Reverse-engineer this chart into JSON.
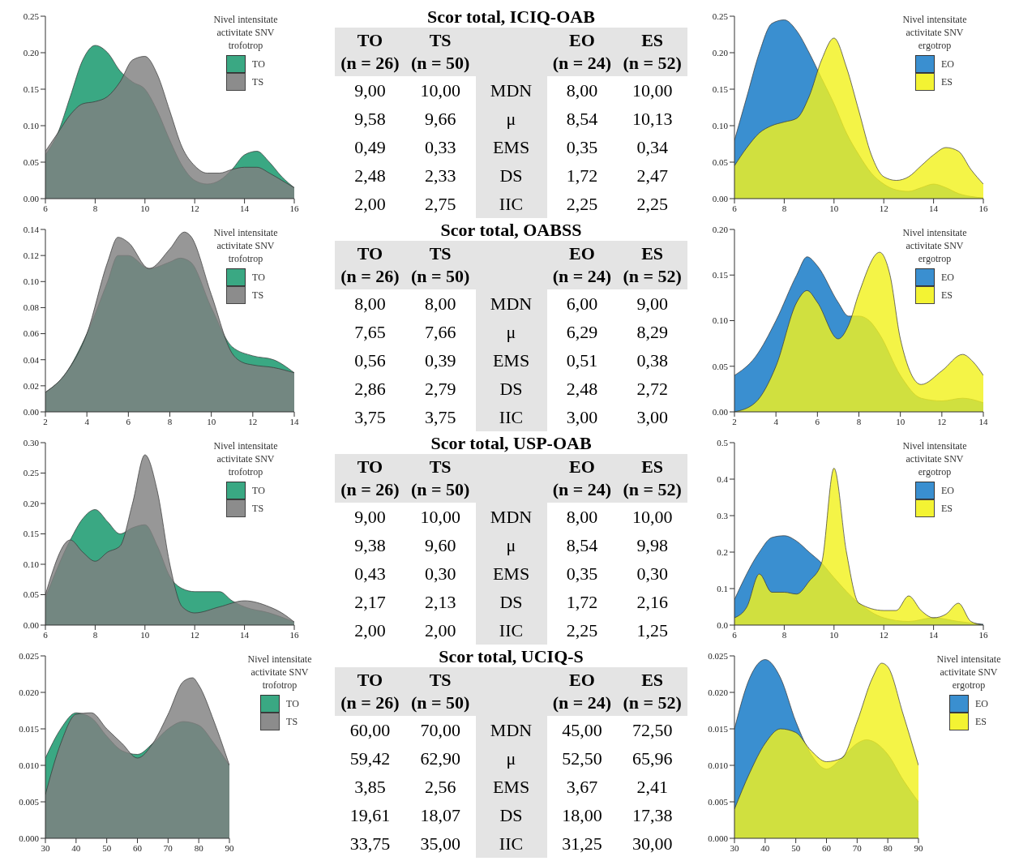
{
  "chart_data": [
    {
      "type": "area",
      "legend_title": "Nivel intensitate activitate SNV trofotrop",
      "legend": "top right",
      "xlim": [
        6,
        16
      ],
      "xticks": [
        6,
        8,
        10,
        12,
        14,
        16
      ],
      "ylim": [
        0,
        0.25
      ],
      "yticks": [
        {
          "value": 0,
          "label": "0.00"
        },
        {
          "value": 0.05,
          "label": "0.05"
        },
        {
          "value": 0.1,
          "label": "0.10"
        },
        {
          "value": 0.15,
          "label": "0.15"
        },
        {
          "value": 0.2,
          "label": "0.20"
        },
        {
          "value": 0.25,
          "label": "0.25"
        }
      ],
      "series": [
        {
          "name": "TO",
          "color": "#3aa883",
          "x": [
            6,
            6.5,
            7,
            7.5,
            8,
            8.5,
            9,
            9.5,
            10,
            10.5,
            11,
            11.5,
            12,
            12.5,
            13,
            13.5,
            14,
            14.5,
            15,
            15.5,
            16
          ],
          "values": [
            0.06,
            0.09,
            0.14,
            0.19,
            0.21,
            0.2,
            0.175,
            0.16,
            0.15,
            0.12,
            0.08,
            0.045,
            0.025,
            0.02,
            0.025,
            0.04,
            0.06,
            0.065,
            0.05,
            0.03,
            0.015
          ]
        },
        {
          "name": "TS",
          "color": "#808080",
          "x": [
            6,
            6.5,
            7,
            7.5,
            8,
            8.5,
            9,
            9.5,
            10,
            10.5,
            11,
            11.5,
            12,
            12.5,
            13,
            13.5,
            14,
            14.5,
            15,
            15.5,
            16
          ],
          "values": [
            0.065,
            0.09,
            0.115,
            0.13,
            0.133,
            0.14,
            0.16,
            0.19,
            0.195,
            0.17,
            0.12,
            0.07,
            0.045,
            0.035,
            0.035,
            0.04,
            0.043,
            0.043,
            0.035,
            0.025,
            0.015
          ]
        }
      ]
    },
    {
      "type": "other",
      "title": "Scor total, ICIQ-OAB",
      "categories": [
        "TO\n(n = 26)",
        "TS\n(n = 50)",
        "EO\n(n = 24)",
        "ES\n(n = 52)"
      ],
      "y_categories": [
        "MDN",
        "μ",
        "EMS",
        "DS",
        "IIC"
      ],
      "cell_labels": [
        [
          "9,00",
          "10,00",
          "8,00",
          "10,00"
        ],
        [
          "9,58",
          "9,66",
          "8,54",
          "10,13"
        ],
        [
          "0,49",
          "0,33",
          "0,35",
          "0,34"
        ],
        [
          "2,48",
          "2,33",
          "1,72",
          "2,47"
        ],
        [
          "2,00",
          "2,75",
          "2,25",
          "2,25"
        ]
      ]
    },
    {
      "type": "area",
      "legend_title": "Nivel intensitate activitate SNV ergotrop",
      "legend": "top right",
      "xlim": [
        6,
        16
      ],
      "xticks": [
        6,
        8,
        10,
        12,
        14,
        16
      ],
      "ylim": [
        0,
        0.25
      ],
      "yticks": [
        {
          "value": 0,
          "label": "0.00"
        },
        {
          "value": 0.05,
          "label": "0.05"
        },
        {
          "value": 0.1,
          "label": "0.10"
        },
        {
          "value": 0.15,
          "label": "0.15"
        },
        {
          "value": 0.2,
          "label": "0.20"
        },
        {
          "value": 0.25,
          "label": "0.25"
        }
      ],
      "series": [
        {
          "name": "EO",
          "color": "#3a8fd0",
          "x": [
            6,
            6.5,
            7,
            7.5,
            8,
            8.5,
            9,
            9.5,
            10,
            10.5,
            11,
            11.5,
            12,
            12.5,
            13,
            13.5,
            14,
            14.5,
            15,
            15.5,
            16
          ],
          "values": [
            0.08,
            0.14,
            0.2,
            0.24,
            0.245,
            0.23,
            0.2,
            0.165,
            0.13,
            0.09,
            0.06,
            0.035,
            0.02,
            0.012,
            0.01,
            0.015,
            0.02,
            0.015,
            0.007,
            0.003,
            0.001
          ]
        },
        {
          "name": "ES",
          "color": "#f2f21e",
          "x": [
            6,
            6.5,
            7,
            7.5,
            8,
            8.5,
            9,
            9.5,
            10,
            10.5,
            11,
            11.5,
            12,
            12.5,
            13,
            13.5,
            14,
            14.5,
            15,
            15.5,
            16
          ],
          "values": [
            0.045,
            0.07,
            0.09,
            0.1,
            0.105,
            0.11,
            0.14,
            0.19,
            0.22,
            0.18,
            0.12,
            0.06,
            0.03,
            0.025,
            0.03,
            0.045,
            0.06,
            0.07,
            0.065,
            0.04,
            0.02
          ]
        }
      ]
    },
    {
      "type": "area",
      "legend_title": "Nivel intensitate activitate SNV trofotrop",
      "legend": "top right",
      "xlim": [
        2,
        14
      ],
      "xticks": [
        2,
        4,
        6,
        8,
        10,
        12,
        14
      ],
      "ylim": [
        0,
        0.14
      ],
      "yticks": [
        {
          "value": 0,
          "label": "0.00"
        },
        {
          "value": 0.02,
          "label": "0.02"
        },
        {
          "value": 0.04,
          "label": "0.04"
        },
        {
          "value": 0.06,
          "label": "0.06"
        },
        {
          "value": 0.08,
          "label": "0.08"
        },
        {
          "value": 0.1,
          "label": "0.10"
        },
        {
          "value": 0.12,
          "label": "0.12"
        },
        {
          "value": 0.14,
          "label": "0.14"
        }
      ],
      "series": [
        {
          "name": "TO",
          "color": "#3aa883",
          "x": [
            2,
            3,
            4,
            5,
            5.5,
            6,
            7,
            8,
            8.5,
            9,
            10,
            11,
            12,
            13,
            14
          ],
          "values": [
            0.015,
            0.03,
            0.06,
            0.1,
            0.12,
            0.12,
            0.11,
            0.115,
            0.118,
            0.115,
            0.08,
            0.05,
            0.043,
            0.04,
            0.03
          ]
        },
        {
          "name": "TS",
          "color": "#808080",
          "x": [
            2,
            3,
            4,
            5,
            5.5,
            6,
            7,
            8,
            8.7,
            9,
            10,
            11,
            11.5,
            12,
            13,
            14
          ],
          "values": [
            0.015,
            0.03,
            0.06,
            0.115,
            0.134,
            0.13,
            0.11,
            0.125,
            0.138,
            0.135,
            0.09,
            0.045,
            0.038,
            0.036,
            0.034,
            0.03
          ]
        }
      ]
    },
    {
      "type": "other",
      "title": "Scor total, OABSS",
      "categories": [
        "TO\n(n = 26)",
        "TS\n(n = 50)",
        "EO\n(n = 24)",
        "ES\n(n = 52)"
      ],
      "y_categories": [
        "MDN",
        "μ",
        "EMS",
        "DS",
        "IIC"
      ],
      "cell_labels": [
        [
          "8,00",
          "8,00",
          "6,00",
          "9,00"
        ],
        [
          "7,65",
          "7,66",
          "6,29",
          "8,29"
        ],
        [
          "0,56",
          "0,39",
          "0,51",
          "0,38"
        ],
        [
          "2,86",
          "2,79",
          "2,48",
          "2,72"
        ],
        [
          "3,75",
          "3,75",
          "3,00",
          "3,00"
        ]
      ]
    },
    {
      "type": "area",
      "legend_title": "Nivel intensitate activitate SNV ergotrop",
      "legend": "top right",
      "xlim": [
        2,
        14
      ],
      "xticks": [
        2,
        4,
        6,
        8,
        10,
        12,
        14
      ],
      "ylim": [
        0,
        0.2
      ],
      "yticks": [
        {
          "value": 0,
          "label": "0.00"
        },
        {
          "value": 0.05,
          "label": "0.05"
        },
        {
          "value": 0.1,
          "label": "0.10"
        },
        {
          "value": 0.15,
          "label": "0.15"
        },
        {
          "value": 0.2,
          "label": "0.20"
        }
      ],
      "series": [
        {
          "name": "EO",
          "color": "#3a8fd0",
          "x": [
            2,
            3,
            4,
            5,
            5.5,
            6,
            7,
            7.5,
            8,
            8.5,
            9,
            10,
            11,
            12,
            13,
            14
          ],
          "values": [
            0.04,
            0.06,
            0.1,
            0.15,
            0.17,
            0.16,
            0.12,
            0.105,
            0.105,
            0.1,
            0.085,
            0.04,
            0.015,
            0.012,
            0.015,
            0.01
          ]
        },
        {
          "name": "ES",
          "color": "#f2f21e",
          "x": [
            2,
            3,
            4,
            5,
            5.5,
            6,
            7,
            7.5,
            8,
            9,
            9.5,
            10,
            11,
            12,
            13,
            13.5,
            14
          ],
          "values": [
            0,
            0.01,
            0.05,
            0.12,
            0.133,
            0.12,
            0.08,
            0.095,
            0.13,
            0.175,
            0.15,
            0.08,
            0.03,
            0.045,
            0.063,
            0.055,
            0.04
          ]
        }
      ]
    },
    {
      "type": "area",
      "legend_title": "Nivel intensitate activitate SNV trofotrop",
      "legend": "top right",
      "xlim": [
        6,
        16
      ],
      "xticks": [
        6,
        8,
        10,
        12,
        14,
        16
      ],
      "ylim": [
        0,
        0.3
      ],
      "yticks": [
        {
          "value": 0,
          "label": "0.00"
        },
        {
          "value": 0.05,
          "label": "0.05"
        },
        {
          "value": 0.1,
          "label": "0.10"
        },
        {
          "value": 0.15,
          "label": "0.15"
        },
        {
          "value": 0.2,
          "label": "0.20"
        },
        {
          "value": 0.25,
          "label": "0.25"
        },
        {
          "value": 0.3,
          "label": "0.30"
        }
      ],
      "series": [
        {
          "name": "TO",
          "color": "#3aa883",
          "x": [
            6,
            7,
            7.5,
            8,
            8.5,
            9,
            9.5,
            10,
            10.5,
            11,
            11.5,
            12,
            13,
            13.5,
            14,
            15,
            16
          ],
          "values": [
            0.045,
            0.14,
            0.175,
            0.19,
            0.17,
            0.15,
            0.16,
            0.165,
            0.13,
            0.08,
            0.06,
            0.055,
            0.055,
            0.04,
            0.03,
            0.02,
            0.005
          ]
        },
        {
          "name": "TS",
          "color": "#808080",
          "x": [
            6,
            7,
            7.5,
            8,
            8.5,
            9,
            9.5,
            10,
            10.5,
            11,
            11.5,
            12,
            13,
            14,
            15,
            15.5,
            16
          ],
          "values": [
            0.05,
            0.14,
            0.12,
            0.105,
            0.12,
            0.13,
            0.2,
            0.28,
            0.22,
            0.1,
            0.03,
            0.02,
            0.03,
            0.04,
            0.03,
            0.02,
            0.005
          ]
        }
      ]
    },
    {
      "type": "other",
      "title": "Scor total, USP-OAB",
      "categories": [
        "TO\n(n = 26)",
        "TS\n(n = 50)",
        "EO\n(n = 24)",
        "ES\n(n = 52)"
      ],
      "y_categories": [
        "MDN",
        "μ",
        "EMS",
        "DS",
        "IIC"
      ],
      "cell_labels": [
        [
          "9,00",
          "10,00",
          "8,00",
          "10,00"
        ],
        [
          "9,38",
          "9,60",
          "8,54",
          "9,98"
        ],
        [
          "0,43",
          "0,30",
          "0,35",
          "0,30"
        ],
        [
          "2,17",
          "2,13",
          "1,72",
          "2,16"
        ],
        [
          "2,00",
          "2,00",
          "2,25",
          "1,25"
        ]
      ]
    },
    {
      "type": "area",
      "legend_title": "Nivel intensitate activitate SNV ergotrop",
      "legend": "top right",
      "xlim": [
        6,
        16
      ],
      "xticks": [
        6,
        8,
        10,
        12,
        14,
        16
      ],
      "ylim": [
        0,
        0.5
      ],
      "yticks": [
        {
          "value": 0,
          "label": "0.0"
        },
        {
          "value": 0.1,
          "label": "0.1"
        },
        {
          "value": 0.2,
          "label": "0.2"
        },
        {
          "value": 0.3,
          "label": "0.3"
        },
        {
          "value": 0.4,
          "label": "0.4"
        },
        {
          "value": 0.5,
          "label": "0.5"
        }
      ],
      "series": [
        {
          "name": "EO",
          "color": "#3a8fd0",
          "x": [
            6,
            7,
            7.5,
            8,
            8.5,
            9,
            9.5,
            10,
            11,
            12,
            13,
            14,
            15,
            16
          ],
          "values": [
            0.07,
            0.2,
            0.24,
            0.245,
            0.23,
            0.2,
            0.17,
            0.13,
            0.06,
            0.02,
            0.01,
            0.02,
            0.01,
            0.002
          ]
        },
        {
          "name": "ES",
          "color": "#f2f21e",
          "x": [
            6,
            6.5,
            7,
            7.5,
            8,
            8.5,
            9,
            9.5,
            10,
            10.5,
            11,
            12,
            12.5,
            13,
            13.5,
            14,
            14.5,
            15,
            15.5,
            16
          ],
          "values": [
            0.02,
            0.05,
            0.14,
            0.09,
            0.09,
            0.085,
            0.12,
            0.17,
            0.43,
            0.2,
            0.06,
            0.04,
            0.04,
            0.08,
            0.04,
            0.02,
            0.03,
            0.06,
            0.01,
            0
          ]
        }
      ]
    },
    {
      "type": "area",
      "legend_title": "Nivel intensitate activitate SNV trofotrop",
      "legend": "right",
      "xlim": [
        30,
        90
      ],
      "xticks": [
        30,
        40,
        50,
        60,
        70,
        80,
        90
      ],
      "ylim": [
        0,
        0.025
      ],
      "yticks": [
        {
          "value": 0,
          "label": "0.000"
        },
        {
          "value": 0.005,
          "label": "0.005"
        },
        {
          "value": 0.01,
          "label": "0.010"
        },
        {
          "value": 0.015,
          "label": "0.015"
        },
        {
          "value": 0.02,
          "label": "0.020"
        },
        {
          "value": 0.025,
          "label": "0.025"
        }
      ],
      "series": [
        {
          "name": "TO",
          "color": "#3aa883",
          "x": [
            30,
            35,
            40,
            45,
            50,
            55,
            60,
            65,
            70,
            75,
            80,
            85,
            90
          ],
          "values": [
            0.011,
            0.015,
            0.0172,
            0.0165,
            0.014,
            0.012,
            0.0115,
            0.013,
            0.015,
            0.016,
            0.0155,
            0.013,
            0.01
          ]
        },
        {
          "name": "TS",
          "color": "#808080",
          "x": [
            30,
            35,
            40,
            45,
            50,
            55,
            60,
            65,
            70,
            75,
            78,
            80,
            85,
            90
          ],
          "values": [
            0.006,
            0.013,
            0.017,
            0.0172,
            0.015,
            0.013,
            0.011,
            0.013,
            0.017,
            0.0215,
            0.022,
            0.021,
            0.016,
            0.01
          ]
        }
      ]
    },
    {
      "type": "other",
      "title": "Scor total, UCIQ-S",
      "categories": [
        "TO\n(n = 26)",
        "TS\n(n = 50)",
        "EO\n(n = 24)",
        "ES\n(n = 52)"
      ],
      "y_categories": [
        "MDN",
        "μ",
        "EMS",
        "DS",
        "IIC"
      ],
      "cell_labels": [
        [
          "60,00",
          "70,00",
          "45,00",
          "72,50"
        ],
        [
          "59,42",
          "62,90",
          "52,50",
          "65,96"
        ],
        [
          "3,85",
          "2,56",
          "3,67",
          "2,41"
        ],
        [
          "19,61",
          "18,07",
          "18,00",
          "17,38"
        ],
        [
          "33,75",
          "35,00",
          "31,25",
          "30,00"
        ]
      ]
    },
    {
      "type": "area",
      "legend_title": "Nivel intensitate activitate SNV ergotrop",
      "legend": "right",
      "xlim": [
        30,
        90
      ],
      "xticks": [
        30,
        40,
        50,
        60,
        70,
        80,
        90
      ],
      "ylim": [
        0,
        0.025
      ],
      "yticks": [
        {
          "value": 0,
          "label": "0.000"
        },
        {
          "value": 0.005,
          "label": "0.005"
        },
        {
          "value": 0.01,
          "label": "0.010"
        },
        {
          "value": 0.015,
          "label": "0.015"
        },
        {
          "value": 0.02,
          "label": "0.020"
        },
        {
          "value": 0.025,
          "label": "0.025"
        }
      ],
      "series": [
        {
          "name": "EO",
          "color": "#3a8fd0",
          "x": [
            30,
            35,
            40,
            45,
            50,
            55,
            60,
            65,
            70,
            73,
            80,
            85,
            90
          ],
          "values": [
            0.015,
            0.022,
            0.0245,
            0.022,
            0.016,
            0.0115,
            0.0095,
            0.011,
            0.013,
            0.0135,
            0.0115,
            0.008,
            0.005
          ]
        },
        {
          "name": "ES",
          "color": "#f2f21e",
          "x": [
            30,
            35,
            40,
            45,
            50,
            55,
            60,
            65,
            70,
            75,
            78,
            80,
            85,
            90
          ],
          "values": [
            0.004,
            0.009,
            0.013,
            0.015,
            0.0145,
            0.012,
            0.0105,
            0.011,
            0.016,
            0.022,
            0.024,
            0.0235,
            0.017,
            0.01
          ]
        }
      ]
    }
  ]
}
